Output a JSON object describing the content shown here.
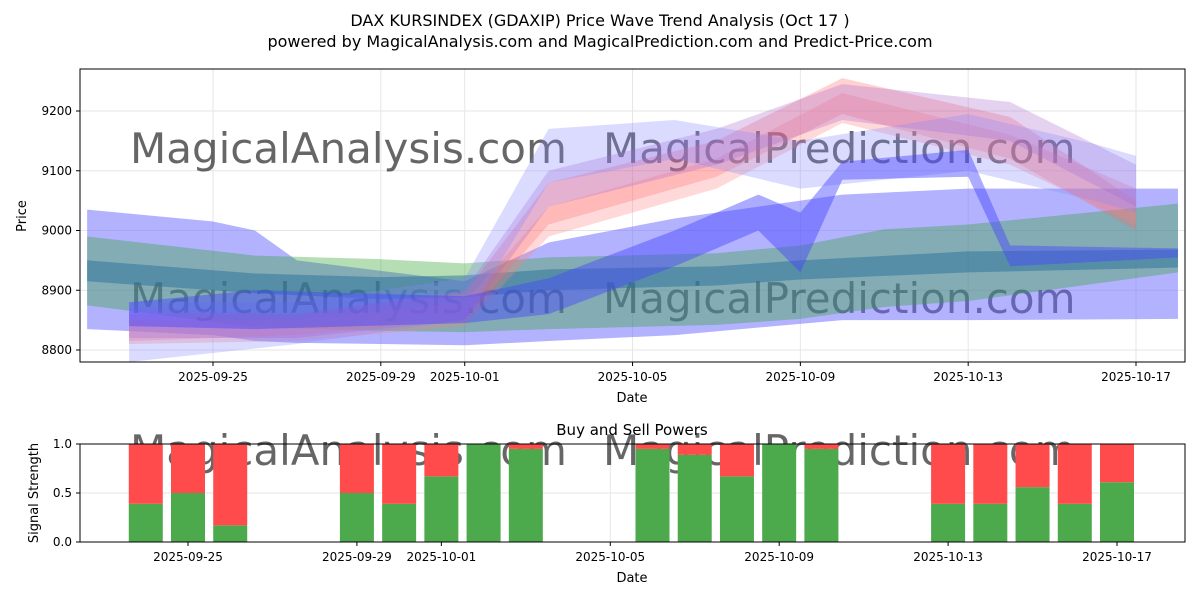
{
  "title_line1": "DAX KURSINDEX (GDAXIP) Price Wave Trend Analysis (Oct 17 )",
  "title_line2": "powered by MagicalAnalysis.com and MagicalPrediction.com and Predict-Price.com",
  "watermarks": [
    "MagicalAnalysis.com",
    "MagicalPrediction.com"
  ],
  "chart_data": [
    {
      "type": "area",
      "title": "",
      "xlabel": "Date",
      "ylabel": "Price",
      "ylim": [
        8778,
        9275
      ],
      "xticks": [
        "2025-09-25",
        "2025-09-29",
        "2025-10-01",
        "2025-10-05",
        "2025-10-09",
        "2025-10-13",
        "2025-10-17"
      ],
      "yticks": [
        8800,
        8900,
        9000,
        9100,
        9200
      ],
      "bands": [
        {
          "name": "blue-wide",
          "color": "#6666ff",
          "opacity": 0.5,
          "x": [
            "2025-09-22",
            "2025-09-25",
            "2025-09-26",
            "2025-09-27",
            "2025-10-01",
            "2025-10-03",
            "2025-10-06",
            "2025-10-10",
            "2025-10-13",
            "2025-10-18"
          ],
          "upper": [
            9035,
            9015,
            9000,
            8950,
            8915,
            8980,
            9020,
            9060,
            9070,
            9070
          ],
          "lower": [
            8835,
            8825,
            8815,
            8812,
            8808,
            8815,
            8825,
            8850,
            8850,
            8852
          ]
        },
        {
          "name": "green",
          "color": "#2ca02c",
          "opacity": 0.35,
          "x": [
            "2025-09-22",
            "2025-09-26",
            "2025-09-29",
            "2025-10-01",
            "2025-10-03",
            "2025-10-07",
            "2025-10-09",
            "2025-10-11",
            "2025-10-13",
            "2025-10-18"
          ],
          "upper": [
            8990,
            8958,
            8952,
            8945,
            8955,
            8962,
            8975,
            9002,
            9010,
            9045
          ],
          "lower": [
            8875,
            8838,
            8832,
            8830,
            8835,
            8842,
            8852,
            8872,
            8882,
            8930
          ]
        },
        {
          "name": "teal-center",
          "color": "#2a6f9a",
          "opacity": 0.5,
          "x": [
            "2025-09-22",
            "2025-09-26",
            "2025-09-29",
            "2025-10-01",
            "2025-10-03",
            "2025-10-07",
            "2025-10-09",
            "2025-10-13",
            "2025-10-18"
          ],
          "upper": [
            8950,
            8928,
            8922,
            8925,
            8935,
            8940,
            8950,
            8965,
            8968
          ],
          "lower": [
            8915,
            8895,
            8885,
            8888,
            8900,
            8908,
            8918,
            8930,
            8938
          ]
        },
        {
          "name": "red-1",
          "color": "#ff6666",
          "opacity": 0.3,
          "x": [
            "2025-09-23",
            "2025-09-27",
            "2025-10-01",
            "2025-10-03",
            "2025-10-07",
            "2025-10-10",
            "2025-10-14",
            "2025-10-17"
          ],
          "upper": [
            8860,
            8860,
            8895,
            9080,
            9150,
            9255,
            9190,
            9050
          ],
          "lower": [
            8815,
            8825,
            8850,
            9010,
            9090,
            9195,
            9120,
            9000
          ]
        },
        {
          "name": "red-2",
          "color": "#ff8080",
          "opacity": 0.3,
          "x": [
            "2025-09-23",
            "2025-09-27",
            "2025-10-01",
            "2025-10-03",
            "2025-10-07",
            "2025-10-10",
            "2025-10-14",
            "2025-10-17"
          ],
          "upper": [
            8850,
            8850,
            8880,
            9040,
            9120,
            9230,
            9160,
            9070
          ],
          "lower": [
            8810,
            8815,
            8840,
            8990,
            9070,
            9180,
            9110,
            9010
          ]
        },
        {
          "name": "purple",
          "color": "#aa66cc",
          "opacity": 0.3,
          "x": [
            "2025-09-23",
            "2025-09-27",
            "2025-10-01",
            "2025-10-03",
            "2025-10-07",
            "2025-10-10",
            "2025-10-14",
            "2025-10-17"
          ],
          "upper": [
            8870,
            8860,
            8900,
            9100,
            9170,
            9245,
            9215,
            9110
          ],
          "lower": [
            8820,
            8820,
            8850,
            9040,
            9110,
            9185,
            9150,
            9040
          ]
        },
        {
          "name": "blue-upper",
          "color": "#8888ff",
          "opacity": 0.3,
          "x": [
            "2025-09-23",
            "2025-09-27",
            "2025-10-01",
            "2025-10-03",
            "2025-10-06",
            "2025-10-09",
            "2025-10-13",
            "2025-10-16",
            "2025-10-17"
          ],
          "upper": [
            8880,
            8880,
            8920,
            9170,
            9185,
            9150,
            9195,
            9145,
            9125
          ],
          "lower": [
            8780,
            8810,
            8850,
            9080,
            9120,
            9070,
            9100,
            9050,
            9030
          ]
        },
        {
          "name": "blue-winding",
          "color": "#4444ff",
          "opacity": 0.45,
          "x": [
            "2025-09-23",
            "2025-09-26",
            "2025-10-01",
            "2025-10-03",
            "2025-10-06",
            "2025-10-08",
            "2025-10-09",
            "2025-10-10",
            "2025-10-13",
            "2025-10-14",
            "2025-10-18"
          ],
          "upper": [
            8880,
            8900,
            8890,
            8920,
            9000,
            9060,
            9030,
            9115,
            9135,
            8975,
            8970
          ],
          "lower": [
            8840,
            8835,
            8845,
            8860,
            8940,
            9000,
            8930,
            9085,
            9090,
            8940,
            8955
          ]
        }
      ]
    },
    {
      "type": "bar",
      "title": "Buy and Sell Powers",
      "xlabel": "Date",
      "ylabel": "Signal Strength",
      "ylim": [
        0,
        1
      ],
      "yticks": [
        0.0,
        0.5,
        1.0
      ],
      "xticks": [
        "2025-09-25",
        "2025-09-29",
        "2025-10-01",
        "2025-10-05",
        "2025-10-09",
        "2025-10-13",
        "2025-10-17"
      ],
      "categories": [
        "2025-09-24",
        "2025-09-25",
        "2025-09-26",
        "2025-09-29",
        "2025-09-30",
        "2025-10-01",
        "2025-10-02",
        "2025-10-03",
        "2025-10-06",
        "2025-10-07",
        "2025-10-08",
        "2025-10-09",
        "2025-10-10",
        "2025-10-13",
        "2025-10-14",
        "2025-10-15",
        "2025-10-16",
        "2025-10-17"
      ],
      "series": [
        {
          "name": "Buy",
          "color": "#4caa4c",
          "values": [
            0.39,
            0.5,
            0.17,
            0.5,
            0.39,
            0.67,
            1.0,
            0.95,
            0.95,
            0.89,
            0.67,
            1.0,
            0.95,
            0.39,
            0.39,
            0.56,
            0.39,
            0.61
          ]
        },
        {
          "name": "Sell",
          "color": "#ff4b4b",
          "values": [
            0.61,
            0.5,
            0.83,
            0.5,
            0.61,
            0.33,
            0.0,
            0.05,
            0.05,
            0.11,
            0.33,
            0.0,
            0.05,
            0.61,
            0.61,
            0.44,
            0.61,
            0.39
          ]
        }
      ]
    }
  ]
}
